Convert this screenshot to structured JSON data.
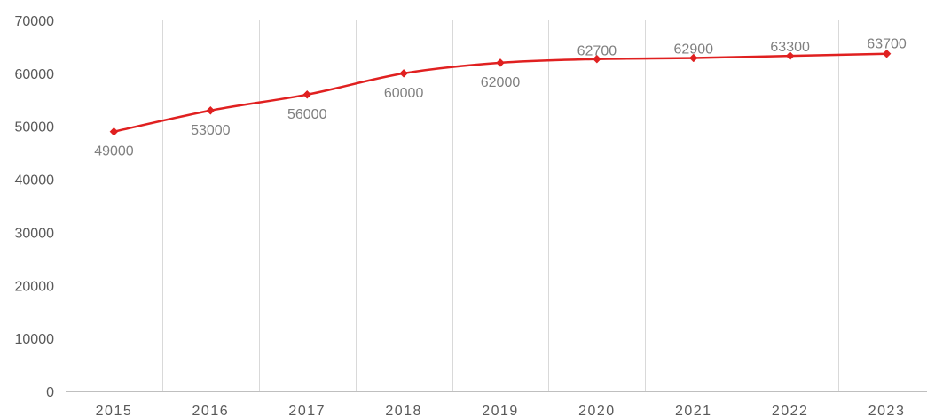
{
  "chart_data": {
    "type": "line",
    "title": "",
    "xlabel": "",
    "ylabel": "",
    "categories": [
      "2015",
      "2016",
      "2017",
      "2018",
      "2019",
      "2020",
      "2021",
      "2022",
      "2023"
    ],
    "series": [
      {
        "values": [
          49000,
          53000,
          56000,
          60000,
          62000,
          62700,
          62900,
          63300,
          63700
        ],
        "labels": [
          "49000",
          "53000",
          "56000",
          "60000",
          "62000",
          "62700",
          "62900",
          "63300",
          "63700"
        ],
        "color": "#e02020",
        "marker": "diamond"
      }
    ],
    "ylim": [
      0,
      70000
    ],
    "yticks": [
      "0",
      "10000",
      "20000",
      "30000",
      "40000",
      "50000",
      "60000",
      "70000"
    ],
    "grid": "vertical",
    "legend": "none",
    "colors": {
      "line": "#e02020",
      "grid": "#d9d9d9",
      "axis": "#bfbfbf",
      "tick_text": "#595959",
      "data_label_text": "#7f7f7f"
    }
  }
}
